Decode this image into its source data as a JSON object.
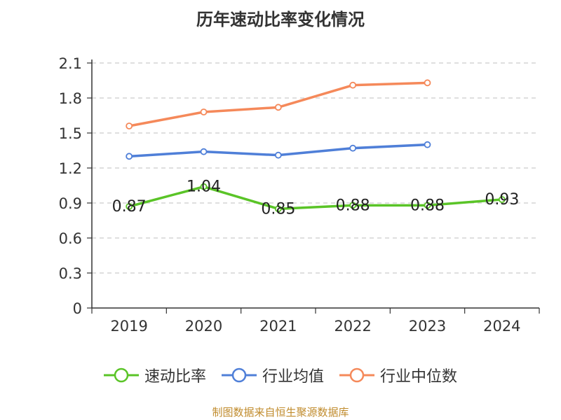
{
  "title": "历年速动比率变化情况",
  "source": "制图数据来自恒生聚源数据库",
  "colors": {
    "series_1": "#5ac427",
    "series_2": "#4f7fd8",
    "series_3": "#f5895a"
  },
  "chart_data": {
    "type": "line",
    "title": "历年速动比率变化情况",
    "categories": [
      "2019",
      "2020",
      "2021",
      "2022",
      "2023",
      "2024"
    ],
    "ylim": [
      0,
      2.1
    ],
    "yticks": [
      "0",
      "0.3",
      "0.6",
      "0.9",
      "1.2",
      "1.5",
      "1.8",
      "2.1"
    ],
    "grid": true,
    "legend_position": "bottom",
    "series": [
      {
        "name": "速动比率",
        "values": [
          0.87,
          1.04,
          0.85,
          0.88,
          0.88,
          0.93
        ],
        "labels": [
          "0.87",
          "1.04",
          "0.85",
          "0.88",
          "0.88",
          "0.93"
        ],
        "color": "#5ac427"
      },
      {
        "name": "行业均值",
        "values": [
          1.3,
          1.34,
          1.31,
          1.37,
          1.4,
          null
        ],
        "color": "#4f7fd8"
      },
      {
        "name": "行业中位数",
        "values": [
          1.56,
          1.68,
          1.72,
          1.91,
          1.93,
          null
        ],
        "color": "#f5895a"
      }
    ]
  }
}
